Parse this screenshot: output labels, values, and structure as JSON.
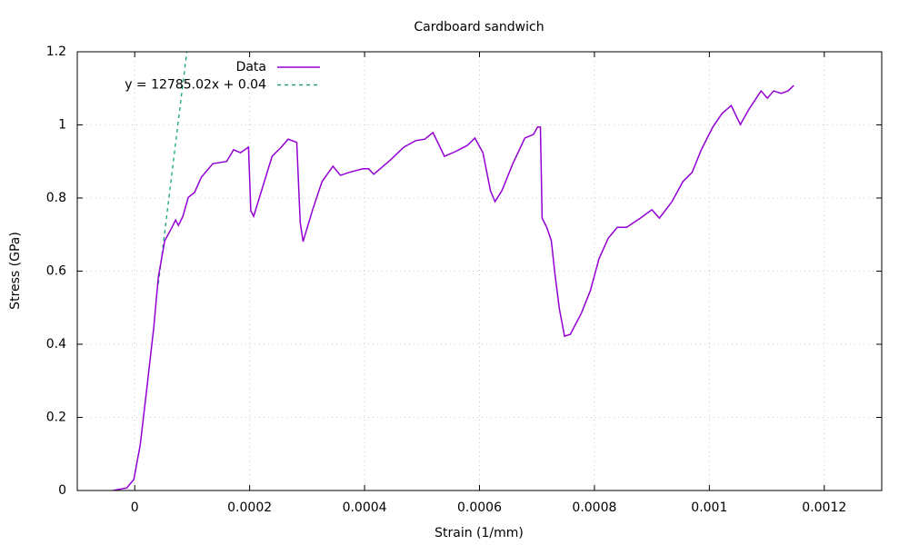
{
  "chart_data": {
    "type": "line",
    "title": "Cardboard sandwich",
    "x_label": "Strain (1/mm)",
    "y_label": "Stress (GPa)",
    "xlim": [
      -0.0001,
      0.0013
    ],
    "ylim": [
      0,
      1.2
    ],
    "xticks": [
      0,
      0.0002,
      0.0004,
      0.0006,
      0.0008,
      0.001,
      0.0012
    ],
    "yticks": [
      0,
      0.2,
      0.4,
      0.6,
      0.8,
      1,
      1.2
    ],
    "grid": true,
    "legend": "top-left",
    "series": [
      {
        "name": "Data",
        "color": "#9400d3",
        "dash": false,
        "x": [
          -3.8e-05,
          -1.4e-05,
          -1.6e-06,
          9.5e-06,
          2.06e-05,
          3.32e-05,
          4.11e-05,
          5.22e-05,
          6.49e-05,
          7.12e-05,
          7.6e-05,
          8.38e-05,
          9.33e-05,
          0.000104,
          0.000116,
          0.000136,
          0.00016,
          0.000172,
          0.000184,
          0.000198,
          0.000202,
          0.000207,
          0.000223,
          0.000239,
          0.000255,
          0.000267,
          0.000282,
          0.000288,
          0.000293,
          0.00031,
          0.000326,
          0.000345,
          0.000358,
          0.000373,
          0.000397,
          0.000407,
          0.000416,
          0.000445,
          0.000468,
          0.000489,
          0.000505,
          0.000519,
          0.000539,
          0.000558,
          0.000579,
          0.000592,
          0.000606,
          0.000619,
          0.000627,
          0.000639,
          0.000658,
          0.000679,
          0.000694,
          0.000701,
          0.000706,
          0.000709,
          0.000717,
          0.000725,
          0.000731,
          0.000739,
          0.000748,
          0.000758,
          0.000777,
          0.000793,
          0.000808,
          0.000824,
          0.00084,
          0.000856,
          0.00088,
          0.0009,
          0.000913,
          0.000935,
          0.000954,
          0.00097,
          0.000986,
          0.001006,
          0.001022,
          0.001038,
          0.001054,
          0.001069,
          0.00109,
          0.001101,
          0.001112,
          0.001125,
          0.001137,
          0.001147
        ],
        "values": [
          0,
          0.007,
          0.03,
          0.124,
          0.273,
          0.447,
          0.584,
          0.683,
          0.72,
          0.74,
          0.725,
          0.75,
          0.802,
          0.815,
          0.857,
          0.894,
          0.9,
          0.932,
          0.924,
          0.939,
          0.765,
          0.75,
          0.832,
          0.914,
          0.939,
          0.961,
          0.952,
          0.733,
          0.681,
          0.77,
          0.845,
          0.887,
          0.862,
          0.87,
          0.88,
          0.88,
          0.865,
          0.904,
          0.939,
          0.957,
          0.961,
          0.979,
          0.914,
          0.927,
          0.944,
          0.964,
          0.924,
          0.82,
          0.79,
          0.82,
          0.894,
          0.964,
          0.974,
          0.994,
          0.994,
          0.745,
          0.72,
          0.683,
          0.596,
          0.497,
          0.422,
          0.427,
          0.484,
          0.547,
          0.634,
          0.69,
          0.72,
          0.72,
          0.745,
          0.768,
          0.745,
          0.79,
          0.845,
          0.87,
          0.932,
          0.994,
          1.031,
          1.053,
          1.001,
          1.043,
          1.093,
          1.073,
          1.093,
          1.086,
          1.093,
          1.108
        ]
      },
      {
        "name": "y = 12785.02x + 0.04",
        "color": "#009e73",
        "dash": true,
        "x": [
          4.11e-05,
          9.07e-05
        ],
        "values": [
          0.565,
          1.2
        ]
      }
    ]
  }
}
